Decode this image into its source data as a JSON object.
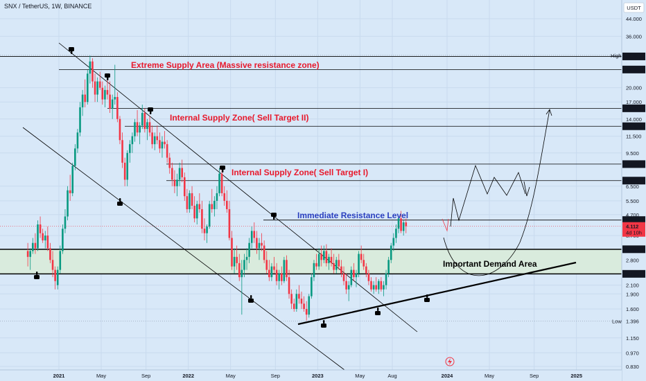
{
  "header": {
    "title": "SNX / TetherUS, 1W, BINANCE",
    "currency": "USDT"
  },
  "colors": {
    "background": "#d8e8f8",
    "up": "#089981",
    "down": "#f23645",
    "supply_text": "#e8192c",
    "resistance_text": "#2a3fbf",
    "demand_zone": "#d9ebdd",
    "black": "#000000"
  },
  "chart_data": {
    "type": "candlestick",
    "scale": "log",
    "ylim": [
      0.83,
      44.0
    ],
    "y_ticks": [
      44.0,
      36.0,
      20.0,
      17.0,
      14.0,
      11.5,
      9.5,
      6.5,
      5.5,
      4.7,
      3.7,
      2.8,
      2.1,
      1.9,
      1.6,
      1.15,
      0.97,
      0.83
    ],
    "y_tick_labels": [
      "44.000",
      "36.000",
      "20.000",
      "17.000",
      "14.000",
      "11.500",
      "9.500",
      "6.500",
      "5.500",
      "4.700",
      "3.700",
      "2.800",
      "2.100",
      "1.900",
      "1.600",
      "1.150",
      "0.970",
      "0.830"
    ],
    "x_ticks": [
      {
        "label": "2021",
        "t": 0
      },
      {
        "label": "May",
        "t": 17
      },
      {
        "label": "Sep",
        "t": 35
      },
      {
        "label": "2022",
        "t": 52
      },
      {
        "label": "May",
        "t": 69
      },
      {
        "label": "Sep",
        "t": 87
      },
      {
        "label": "2023",
        "t": 104
      },
      {
        "label": "May",
        "t": 121
      },
      {
        "label": "Aug",
        "t": 134
      },
      {
        "label": "2024",
        "t": 156
      },
      {
        "label": "May",
        "t": 173
      },
      {
        "label": "Sep",
        "t": 191
      },
      {
        "label": "2025",
        "t": 208
      }
    ],
    "price_levels": [
      {
        "price": 28.602,
        "label": "28.602",
        "style": "boxed"
      },
      {
        "price": 24.631,
        "label": "24.631",
        "style": "boxed"
      },
      {
        "price": 15.818,
        "label": "15.818",
        "style": "boxed"
      },
      {
        "price": 12.888,
        "label": "12.888",
        "style": "boxed"
      },
      {
        "price": 8.364,
        "label": "8.364",
        "style": "boxed"
      },
      {
        "price": 6.927,
        "label": "6.927",
        "style": "boxed"
      },
      {
        "price": 4.415,
        "label": "4.415",
        "style": "boxed"
      },
      {
        "price": 3.164,
        "label": "3.164",
        "style": "boxed"
      },
      {
        "price": 2.389,
        "label": "2.389",
        "style": "boxed"
      }
    ],
    "current_price": {
      "price": 4.112,
      "label": "4.112",
      "countdown": "4d 10h"
    },
    "high": {
      "price": 28.981,
      "label": "28.981",
      "tag": "High"
    },
    "low": {
      "price": 1.396,
      "label": "1.396",
      "tag": "Low"
    },
    "demand_zone": {
      "from": 2.389,
      "to": 3.164
    },
    "candles": [
      [
        2.1,
        2.6,
        2.0,
        2.5
      ],
      [
        2.5,
        3.3,
        2.4,
        3.1
      ],
      [
        3.1,
        4.2,
        3.0,
        4.0
      ],
      [
        4.0,
        5.0,
        3.8,
        4.6
      ],
      [
        4.6,
        6.5,
        4.4,
        6.2
      ],
      [
        6.2,
        7.4,
        5.5,
        6.0
      ],
      [
        6.0,
        8.5,
        5.8,
        8.2
      ],
      [
        8.2,
        10.5,
        7.8,
        10.0
      ],
      [
        10.0,
        12.5,
        9.5,
        12.0
      ],
      [
        12.0,
        17.0,
        11.5,
        16.0
      ],
      [
        16.0,
        19.5,
        14.5,
        18.5
      ],
      [
        18.5,
        22.0,
        16.0,
        17.0
      ],
      [
        17.0,
        24.5,
        16.5,
        23.5
      ],
      [
        23.5,
        28.9,
        21.0,
        27.0
      ],
      [
        27.0,
        28.0,
        20.0,
        21.5
      ],
      [
        21.5,
        23.5,
        17.0,
        18.5
      ],
      [
        18.5,
        22.5,
        17.0,
        21.5
      ],
      [
        21.5,
        24.0,
        19.5,
        20.0
      ],
      [
        20.0,
        21.5,
        16.5,
        17.5
      ],
      [
        17.5,
        20.5,
        16.0,
        19.5
      ],
      [
        19.5,
        22.0,
        17.5,
        18.5
      ],
      [
        18.5,
        21.5,
        15.0,
        15.8
      ],
      [
        15.8,
        18.5,
        14.0,
        17.5
      ],
      [
        17.5,
        26.0,
        16.5,
        18.0
      ],
      [
        18.0,
        19.0,
        13.5,
        14.0
      ],
      [
        14.0,
        14.5,
        10.5,
        11.0
      ],
      [
        11.0,
        12.0,
        8.0,
        8.5
      ],
      [
        8.5,
        9.0,
        6.5,
        7.0
      ],
      [
        7.0,
        9.8,
        6.5,
        9.5
      ],
      [
        9.5,
        11.0,
        8.5,
        10.5
      ],
      [
        10.5,
        12.0,
        9.5,
        11.5
      ],
      [
        11.5,
        14.0,
        10.8,
        13.5
      ],
      [
        13.5,
        15.5,
        11.5,
        12.0
      ],
      [
        12.0,
        13.5,
        10.5,
        13.0
      ],
      [
        13.0,
        16.5,
        12.5,
        15.0
      ],
      [
        15.0,
        15.8,
        12.0,
        12.5
      ],
      [
        12.5,
        14.0,
        11.0,
        13.5
      ],
      [
        13.5,
        14.5,
        11.5,
        12.0
      ],
      [
        12.0,
        13.0,
        10.0,
        10.5
      ],
      [
        10.5,
        12.0,
        9.8,
        11.5
      ],
      [
        11.5,
        13.0,
        10.5,
        11.0
      ],
      [
        11.0,
        12.0,
        9.5,
        10.0
      ],
      [
        10.0,
        11.5,
        9.0,
        10.8
      ],
      [
        10.8,
        12.2,
        10.0,
        10.5
      ],
      [
        10.5,
        11.0,
        8.5,
        9.0
      ],
      [
        9.0,
        9.5,
        7.5,
        8.0
      ],
      [
        8.0,
        8.5,
        6.5,
        7.0
      ],
      [
        7.0,
        7.8,
        6.0,
        6.5
      ],
      [
        6.5,
        7.5,
        5.8,
        7.0
      ],
      [
        7.0,
        8.5,
        6.5,
        8.0
      ],
      [
        8.0,
        8.8,
        6.8,
        7.2
      ],
      [
        7.2,
        7.6,
        5.5,
        5.8
      ],
      [
        5.8,
        6.3,
        4.8,
        5.0
      ],
      [
        5.0,
        6.2,
        4.8,
        6.0
      ],
      [
        6.0,
        6.5,
        5.0,
        5.2
      ],
      [
        5.2,
        5.8,
        4.3,
        4.5
      ],
      [
        4.5,
        5.5,
        4.2,
        5.3
      ],
      [
        5.3,
        6.0,
        4.8,
        5.0
      ],
      [
        5.0,
        5.5,
        3.8,
        4.0
      ],
      [
        4.0,
        4.5,
        3.5,
        3.8
      ],
      [
        3.8,
        4.2,
        3.4,
        4.1
      ],
      [
        4.1,
        5.5,
        4.0,
        5.3
      ],
      [
        5.3,
        6.3,
        4.8,
        5.0
      ],
      [
        5.0,
        5.8,
        4.6,
        5.5
      ],
      [
        5.5,
        6.5,
        5.0,
        6.0
      ],
      [
        6.0,
        8.0,
        5.8,
        7.5
      ],
      [
        7.5,
        8.2,
        5.8,
        6.0
      ],
      [
        6.0,
        6.5,
        5.2,
        5.5
      ],
      [
        5.5,
        6.2,
        4.8,
        5.0
      ],
      [
        5.0,
        5.5,
        3.5,
        3.6
      ],
      [
        3.6,
        3.9,
        2.5,
        2.6
      ],
      [
        2.6,
        3.2,
        2.4,
        2.9
      ],
      [
        2.9,
        3.3,
        2.5,
        2.7
      ],
      [
        2.7,
        3.0,
        2.2,
        2.3
      ],
      [
        2.3,
        2.8,
        1.5,
        2.5
      ],
      [
        2.5,
        3.0,
        2.3,
        2.8
      ],
      [
        2.8,
        3.2,
        2.5,
        2.9
      ],
      [
        2.9,
        3.6,
        2.7,
        3.4
      ],
      [
        3.4,
        4.1,
        3.2,
        3.9
      ],
      [
        3.9,
        4.3,
        3.4,
        3.6
      ],
      [
        3.6,
        3.9,
        3.0,
        3.2
      ],
      [
        3.2,
        3.6,
        2.8,
        3.4
      ],
      [
        3.4,
        3.8,
        3.1,
        3.3
      ],
      [
        3.3,
        3.5,
        2.7,
        2.8
      ],
      [
        2.8,
        3.1,
        2.4,
        2.5
      ],
      [
        2.5,
        2.8,
        2.2,
        2.3
      ],
      [
        2.3,
        2.7,
        2.2,
        2.6
      ],
      [
        2.6,
        2.9,
        2.4,
        2.5
      ],
      [
        2.5,
        2.7,
        2.1,
        2.2
      ],
      [
        2.2,
        2.5,
        2.0,
        2.4
      ],
      [
        2.4,
        2.6,
        2.1,
        2.2
      ],
      [
        2.2,
        2.9,
        2.15,
        2.8
      ],
      [
        2.8,
        2.95,
        2.2,
        2.3
      ],
      [
        2.3,
        2.5,
        1.8,
        1.9
      ],
      [
        1.9,
        2.0,
        1.6,
        1.7
      ],
      [
        1.7,
        1.8,
        1.55,
        1.6
      ],
      [
        1.6,
        2.0,
        1.55,
        1.9
      ],
      [
        1.9,
        2.1,
        1.7,
        1.8
      ],
      [
        1.8,
        1.95,
        1.6,
        1.7
      ],
      [
        1.7,
        1.85,
        1.55,
        1.6
      ],
      [
        1.6,
        1.75,
        1.4,
        1.5
      ],
      [
        1.5,
        1.9,
        1.45,
        1.85
      ],
      [
        1.85,
        2.4,
        1.8,
        2.3
      ],
      [
        2.3,
        2.8,
        2.2,
        2.7
      ],
      [
        2.7,
        3.0,
        2.5,
        2.6
      ],
      [
        2.6,
        3.2,
        2.5,
        3.0
      ],
      [
        3.0,
        3.3,
        2.6,
        2.8
      ],
      [
        2.8,
        3.3,
        2.7,
        3.1
      ],
      [
        3.1,
        3.35,
        2.6,
        2.7
      ],
      [
        2.7,
        3.0,
        2.5,
        2.9
      ],
      [
        2.9,
        3.2,
        2.6,
        2.7
      ],
      [
        2.7,
        3.0,
        2.4,
        2.5
      ],
      [
        2.5,
        2.9,
        2.4,
        2.8
      ],
      [
        2.8,
        3.0,
        2.5,
        2.6
      ],
      [
        2.6,
        2.8,
        2.3,
        2.4
      ],
      [
        2.4,
        2.6,
        2.1,
        2.2
      ],
      [
        2.2,
        2.4,
        1.9,
        2.0
      ],
      [
        2.0,
        2.2,
        1.75,
        2.1
      ],
      [
        2.1,
        2.6,
        2.05,
        2.5
      ],
      [
        2.5,
        2.7,
        2.2,
        2.3
      ],
      [
        2.3,
        2.5,
        2.05,
        2.4
      ],
      [
        2.4,
        3.1,
        2.3,
        3.0
      ],
      [
        3.0,
        3.3,
        2.7,
        2.8
      ],
      [
        2.8,
        3.0,
        2.5,
        2.6
      ],
      [
        2.6,
        2.7,
        2.3,
        2.4
      ],
      [
        2.4,
        2.5,
        2.1,
        2.2
      ],
      [
        2.2,
        2.3,
        1.95,
        2.0
      ],
      [
        2.0,
        2.2,
        1.9,
        2.1
      ],
      [
        2.1,
        2.3,
        1.95,
        2.0
      ],
      [
        2.0,
        2.25,
        1.9,
        2.2
      ],
      [
        2.2,
        2.3,
        1.95,
        2.0
      ],
      [
        2.0,
        2.2,
        1.85,
        2.1
      ],
      [
        2.1,
        2.5,
        2.0,
        2.4
      ],
      [
        2.4,
        2.9,
        2.3,
        2.8
      ],
      [
        2.8,
        3.4,
        2.7,
        3.3
      ],
      [
        3.3,
        3.8,
        3.1,
        3.6
      ],
      [
        3.6,
        4.2,
        3.4,
        4.0
      ],
      [
        4.0,
        4.6,
        3.8,
        4.5
      ],
      [
        4.5,
        4.9,
        3.8,
        3.9
      ],
      [
        3.9,
        4.4,
        3.7,
        4.3
      ],
      [
        4.3,
        4.5,
        3.8,
        4.112
      ]
    ],
    "candle_spacing_weeks": 1,
    "annotations": [
      {
        "text": "Extreme Supply Area (Massive resistance zone)",
        "color": "supply"
      },
      {
        "text": "Internal Supply Zone( Sell Target II)",
        "color": "supply"
      },
      {
        "text": "Internal Supply Zone( Sell Target I)",
        "color": "supply"
      },
      {
        "text": "Immediate Resistance Level",
        "color": "resistance"
      },
      {
        "text": "Important Demand Area",
        "color": "black"
      }
    ]
  }
}
